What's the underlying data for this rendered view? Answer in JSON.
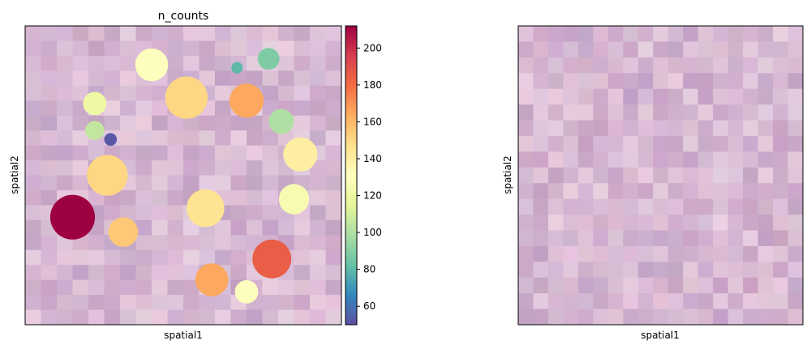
{
  "chart_data": [
    {
      "type": "scatter",
      "title": "n_counts",
      "xlabel": "spatial1",
      "ylabel": "spatial2",
      "background": "tissue-image",
      "colormap": "Spectral_r",
      "colorbar": {
        "min": 50,
        "max": 212,
        "ticks": [
          60,
          80,
          100,
          120,
          140,
          160,
          180,
          200
        ]
      },
      "xlim": [
        0,
        100
      ],
      "ylim": [
        0,
        100
      ],
      "points": [
        {
          "x": 40,
          "y": 87,
          "size": 1300,
          "value": 130
        },
        {
          "x": 51,
          "y": 76,
          "size": 2150,
          "value": 150
        },
        {
          "x": 70,
          "y": 75,
          "size": 1400,
          "value": 165
        },
        {
          "x": 77,
          "y": 89,
          "size": 560,
          "value": 88
        },
        {
          "x": 67,
          "y": 86,
          "size": 160,
          "value": 80
        },
        {
          "x": 22,
          "y": 74,
          "size": 650,
          "value": 120
        },
        {
          "x": 22,
          "y": 65,
          "size": 440,
          "value": 105
        },
        {
          "x": 27,
          "y": 62,
          "size": 190,
          "value": 52
        },
        {
          "x": 81,
          "y": 68,
          "size": 750,
          "value": 100
        },
        {
          "x": 87,
          "y": 57,
          "size": 1400,
          "value": 140
        },
        {
          "x": 26,
          "y": 50,
          "size": 2000,
          "value": 150
        },
        {
          "x": 85,
          "y": 42,
          "size": 1100,
          "value": 125
        },
        {
          "x": 15,
          "y": 36,
          "size": 2400,
          "value": 212
        },
        {
          "x": 31,
          "y": 31,
          "size": 1050,
          "value": 155
        },
        {
          "x": 57,
          "y": 39,
          "size": 1700,
          "value": 145
        },
        {
          "x": 78,
          "y": 22,
          "size": 1800,
          "value": 185
        },
        {
          "x": 59,
          "y": 15,
          "size": 1300,
          "value": 165
        },
        {
          "x": 70,
          "y": 11,
          "size": 650,
          "value": 130
        }
      ]
    },
    {
      "type": "heatmap",
      "title": "",
      "xlabel": "spatial1",
      "ylabel": "spatial2",
      "background": "tissue-image"
    }
  ]
}
